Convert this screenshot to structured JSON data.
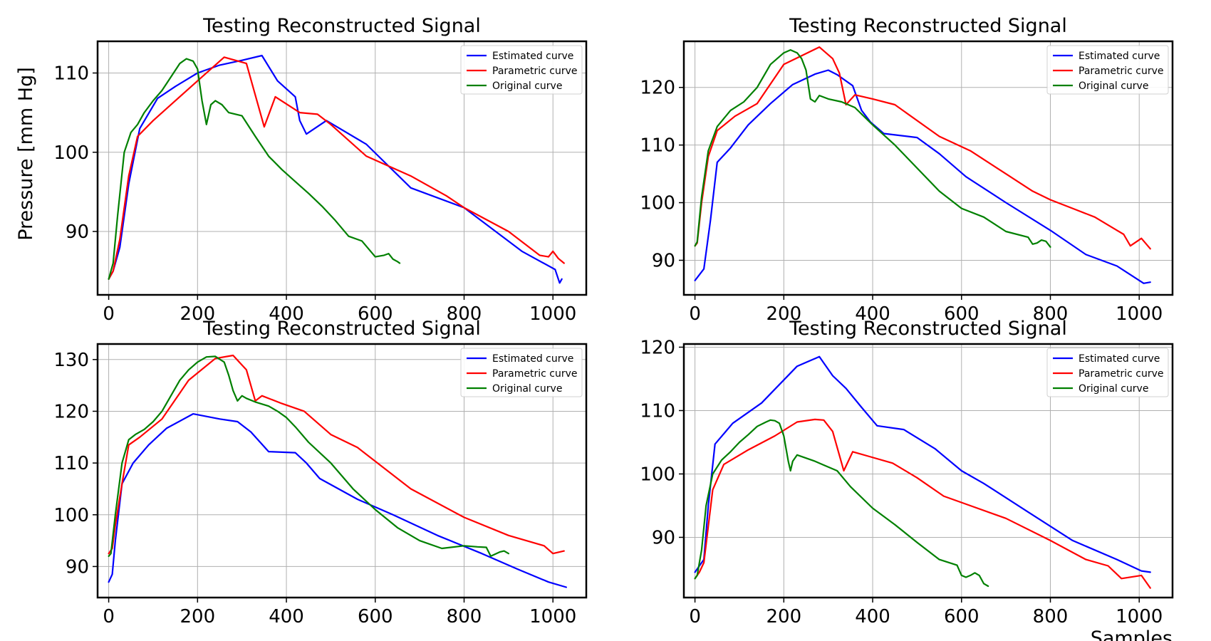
{
  "chart_data": [
    {
      "type": "line",
      "title": "Testing Reconstructed Signal",
      "xlabel": "",
      "ylabel": "Pressure [mm Hg]",
      "xlim": [
        -25,
        1075
      ],
      "ylim": [
        82,
        114
      ],
      "xticks": [
        0,
        200,
        400,
        600,
        800,
        1000
      ],
      "yticks": [
        90,
        100,
        110
      ],
      "grid": true,
      "legend": "top-right",
      "series": [
        {
          "name": "Estimated curve",
          "color": "#0000ff",
          "x": [
            0,
            10,
            25,
            45,
            70,
            110,
            150,
            200,
            250,
            300,
            345,
            380,
            420,
            430,
            445,
            490,
            580,
            680,
            800,
            930,
            1005,
            1015,
            1020
          ],
          "y": [
            84,
            85,
            88,
            96,
            103,
            106.8,
            108.3,
            110,
            111,
            111.6,
            112.2,
            109,
            107,
            104,
            102.3,
            104,
            101,
            95.5,
            93,
            87.5,
            85.2,
            83.5,
            84
          ]
        },
        {
          "name": "Parametric curve",
          "color": "#ff0000",
          "x": [
            0,
            10,
            25,
            45,
            65,
            100,
            150,
            200,
            260,
            310,
            350,
            375,
            430,
            470,
            500,
            580,
            680,
            760,
            800,
            900,
            970,
            990,
            1000,
            1012,
            1025
          ],
          "y": [
            84,
            85,
            89,
            97,
            102,
            104,
            106.5,
            109,
            112,
            111.2,
            103.2,
            107,
            105,
            104.8,
            103.5,
            99.5,
            97,
            94.5,
            93,
            90,
            87,
            86.8,
            87.5,
            86.6,
            86
          ]
        },
        {
          "name": "Original curve",
          "color": "#008000",
          "x": [
            0,
            10,
            20,
            35,
            50,
            65,
            80,
            100,
            120,
            140,
            160,
            175,
            190,
            200,
            210,
            220,
            230,
            240,
            255,
            270,
            300,
            330,
            360,
            390,
            420,
            450,
            480,
            510,
            540,
            570,
            600,
            620,
            630,
            640,
            650,
            655
          ],
          "y": [
            84,
            86,
            92,
            100,
            102.5,
            103.5,
            105,
            106.5,
            107.8,
            109.5,
            111.2,
            111.8,
            111.5,
            110.5,
            106.5,
            103.5,
            106,
            106.5,
            106,
            105,
            104.6,
            102,
            99.5,
            97.8,
            96.3,
            94.8,
            93.2,
            91.4,
            89.4,
            88.8,
            86.8,
            87,
            87.2,
            86.5,
            86.2,
            86
          ]
        }
      ]
    },
    {
      "type": "line",
      "title": "Testing Reconstructed Signal",
      "xlabel": "",
      "ylabel": "",
      "xlim": [
        -25,
        1075
      ],
      "ylim": [
        84,
        128
      ],
      "xticks": [
        0,
        200,
        400,
        600,
        800,
        1000
      ],
      "yticks": [
        90,
        100,
        110,
        120
      ],
      "grid": true,
      "legend": "top-right",
      "series": [
        {
          "name": "Estimated curve",
          "color": "#0000ff",
          "x": [
            0,
            20,
            35,
            50,
            80,
            120,
            170,
            220,
            270,
            300,
            320,
            355,
            375,
            395,
            425,
            500,
            550,
            610,
            700,
            800,
            880,
            950,
            1010,
            1025
          ],
          "y": [
            86.5,
            88.5,
            97,
            107,
            109.5,
            113.5,
            117.2,
            120.5,
            122.3,
            123,
            122.2,
            120.3,
            116,
            114,
            112,
            111.3,
            108.5,
            104.5,
            100,
            95.2,
            91,
            89,
            86,
            86.2
          ]
        },
        {
          "name": "Parametric curve",
          "color": "#ff0000",
          "x": [
            0,
            5,
            15,
            30,
            50,
            90,
            140,
            200,
            240,
            280,
            310,
            325,
            340,
            360,
            400,
            450,
            550,
            620,
            700,
            760,
            800,
            850,
            900,
            950,
            965,
            980,
            1005,
            1025
          ],
          "y": [
            92.5,
            93,
            100,
            108,
            112.5,
            115,
            117.2,
            124,
            125.5,
            127,
            125,
            122.5,
            117,
            118.7,
            118,
            117,
            111.5,
            109,
            105,
            102,
            100.5,
            99,
            97.5,
            95.2,
            94.5,
            92.5,
            93.8,
            92
          ]
        },
        {
          "name": "Original curve",
          "color": "#008000",
          "x": [
            0,
            5,
            15,
            30,
            50,
            80,
            110,
            140,
            170,
            200,
            215,
            230,
            240,
            250,
            260,
            270,
            280,
            300,
            330,
            360,
            380,
            400,
            450,
            500,
            550,
            600,
            650,
            700,
            750,
            760,
            770,
            780,
            790,
            800
          ],
          "y": [
            92.5,
            93.2,
            101,
            109,
            113.2,
            116,
            117.5,
            120,
            124,
            126,
            126.5,
            126,
            125,
            123,
            118,
            117.5,
            118.6,
            118,
            117.5,
            116.5,
            115,
            113.5,
            110,
            106,
            102,
            99,
            97.5,
            95,
            94,
            92.8,
            93,
            93.5,
            93.3,
            92.3
          ]
        }
      ]
    },
    {
      "type": "line",
      "title": "Testing Reconstructed Signal",
      "xlabel": "",
      "ylabel": "",
      "xlim": [
        -25,
        1075
      ],
      "ylim": [
        84,
        133
      ],
      "xticks": [
        0,
        200,
        400,
        600,
        800,
        1000
      ],
      "yticks": [
        90,
        100,
        110,
        120,
        130
      ],
      "grid": true,
      "legend": "top-right",
      "series": [
        {
          "name": "Estimated curve",
          "color": "#0000ff",
          "x": [
            0,
            8,
            15,
            30,
            55,
            90,
            130,
            190,
            250,
            290,
            320,
            360,
            420,
            445,
            475,
            560,
            640,
            740,
            840,
            920,
            990,
            1030
          ],
          "y": [
            87,
            88.5,
            95,
            106,
            110,
            113.5,
            116.7,
            119.5,
            118.5,
            118,
            116,
            112.2,
            112,
            110,
            107,
            103,
            100,
            96,
            92.5,
            89.5,
            87,
            86
          ]
        },
        {
          "name": "Parametric curve",
          "color": "#ff0000",
          "x": [
            0,
            8,
            15,
            30,
            45,
            70,
            120,
            180,
            240,
            280,
            310,
            330,
            345,
            390,
            440,
            500,
            560,
            680,
            800,
            900,
            960,
            980,
            1000,
            1025
          ],
          "y": [
            92.5,
            93.5,
            98,
            106,
            113.5,
            115,
            118.5,
            126,
            130.2,
            130.8,
            128,
            122,
            123,
            121.5,
            120,
            115.5,
            113,
            105,
            99.5,
            96,
            94.5,
            94,
            92.5,
            93
          ]
        },
        {
          "name": "Original curve",
          "color": "#008000",
          "x": [
            0,
            5,
            15,
            30,
            45,
            60,
            80,
            100,
            120,
            140,
            160,
            180,
            200,
            220,
            240,
            260,
            270,
            280,
            290,
            300,
            310,
            330,
            360,
            380,
            400,
            420,
            450,
            500,
            550,
            600,
            650,
            700,
            750,
            800,
            830,
            850,
            860,
            870,
            880,
            890,
            900
          ],
          "y": [
            92,
            92.5,
            100,
            110,
            114.5,
            115.5,
            116.5,
            118,
            120,
            123,
            126,
            128,
            129.5,
            130.5,
            130.6,
            129.5,
            127,
            124,
            122,
            123,
            122.5,
            121.8,
            121,
            120,
            118.8,
            117,
            114,
            110,
            105,
            101,
            97.5,
            95,
            93.5,
            94,
            93.8,
            93.7,
            92,
            92.4,
            92.8,
            93,
            92.5
          ]
        }
      ]
    },
    {
      "type": "line",
      "title": "Testing Reconstructed Signal",
      "xlabel": "Samples",
      "ylabel": "",
      "xlim": [
        -25,
        1075
      ],
      "ylim": [
        80.5,
        120.5
      ],
      "xticks": [
        0,
        200,
        400,
        600,
        800,
        1000
      ],
      "yticks": [
        90,
        100,
        110,
        120
      ],
      "grid": true,
      "legend": "top-right",
      "series": [
        {
          "name": "Estimated curve",
          "color": "#0000ff",
          "x": [
            0,
            10,
            20,
            30,
            45,
            85,
            150,
            230,
            280,
            310,
            340,
            375,
            410,
            470,
            540,
            600,
            650,
            750,
            850,
            950,
            1005,
            1025
          ],
          "y": [
            84.5,
            85.5,
            86.5,
            95,
            104.7,
            108,
            111.2,
            117,
            118.5,
            115.5,
            113.5,
            110.5,
            107.6,
            107,
            104,
            100.5,
            98.5,
            94,
            89.5,
            86.5,
            84.7,
            84.5
          ]
        },
        {
          "name": "Parametric curve",
          "color": "#ff0000",
          "x": [
            0,
            10,
            20,
            40,
            65,
            120,
            180,
            230,
            270,
            290,
            310,
            335,
            355,
            390,
            445,
            500,
            560,
            620,
            700,
            800,
            880,
            930,
            960,
            1005,
            1025
          ],
          "y": [
            83.5,
            84.5,
            86,
            97.5,
            101.5,
            103.8,
            106,
            108.2,
            108.6,
            108.5,
            106.7,
            100.5,
            103.5,
            102.8,
            101.7,
            99.4,
            96.5,
            95,
            93,
            89.5,
            86.5,
            85.5,
            83.5,
            84,
            82
          ]
        },
        {
          "name": "Original curve",
          "color": "#008000",
          "x": [
            0,
            5,
            15,
            25,
            40,
            60,
            80,
            100,
            120,
            140,
            160,
            170,
            180,
            190,
            200,
            210,
            215,
            220,
            230,
            250,
            270,
            290,
            320,
            350,
            400,
            450,
            500,
            550,
            590,
            600,
            610,
            620,
            630,
            640,
            650,
            660
          ],
          "y": [
            83.5,
            84,
            88,
            95,
            100,
            102.2,
            103.5,
            105,
            106.2,
            107.5,
            108.2,
            108.5,
            108.4,
            108,
            106,
            102,
            100.5,
            102,
            103,
            102.5,
            102,
            101.4,
            100.5,
            98,
            94.6,
            92,
            89.2,
            86.5,
            85.6,
            84,
            83.7,
            84,
            84.4,
            84,
            82.7,
            82.3
          ]
        }
      ]
    }
  ]
}
